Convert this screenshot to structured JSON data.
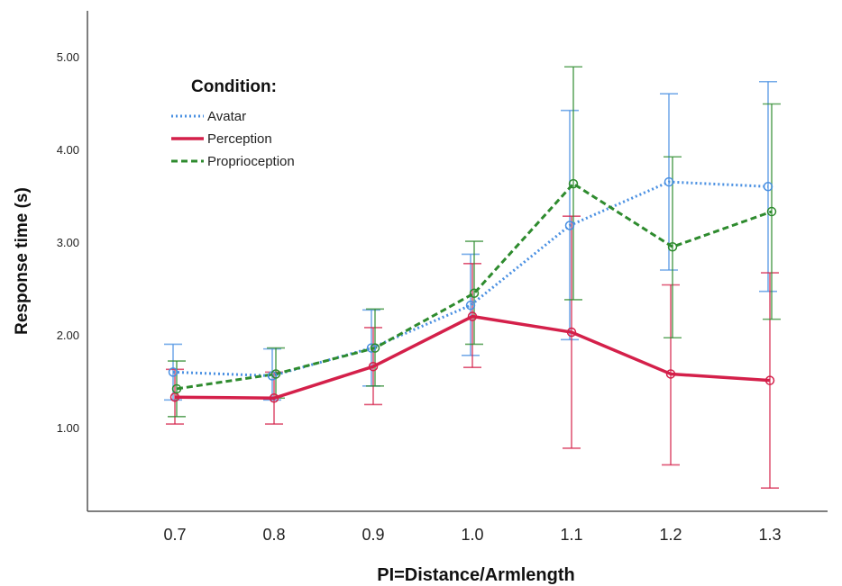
{
  "chart_data": {
    "type": "line",
    "xlabel": "PI=Distance/Armlength",
    "ylabel": "Response time (s)",
    "categories": [
      "0.7",
      "0.8",
      "0.9",
      "1.0",
      "1.1",
      "1.2",
      "1.3"
    ],
    "y_ticks": [
      "1.00",
      "2.00",
      "3.00",
      "4.00",
      "5.00"
    ],
    "ylim": [
      0.1,
      5.3
    ],
    "grid": false,
    "legend": {
      "title": "Condition:",
      "placement": "top-left"
    },
    "series": [
      {
        "name": "Avatar",
        "color": "#4a90e2",
        "line_style": "dotted",
        "values": [
          1.6,
          1.56,
          1.86,
          2.32,
          3.18,
          3.65,
          3.6
        ],
        "err_low": [
          1.3,
          1.3,
          1.45,
          1.78,
          1.95,
          2.7,
          2.47
        ],
        "err_high": [
          1.9,
          1.85,
          2.27,
          2.87,
          4.42,
          4.6,
          4.73
        ]
      },
      {
        "name": "Perception",
        "color": "#d4204a",
        "line_style": "solid",
        "values": [
          1.33,
          1.32,
          1.66,
          2.2,
          2.03,
          1.58,
          1.51
        ],
        "err_low": [
          1.04,
          1.04,
          1.25,
          1.65,
          0.78,
          0.6,
          0.35
        ],
        "err_high": [
          1.63,
          1.6,
          2.08,
          2.77,
          3.28,
          2.54,
          2.67
        ]
      },
      {
        "name": "Proprioception",
        "color": "#2e8b2e",
        "line_style": "dashed",
        "values": [
          1.42,
          1.58,
          1.86,
          2.45,
          3.63,
          2.95,
          3.33
        ],
        "err_low": [
          1.12,
          1.32,
          1.45,
          1.9,
          2.38,
          1.97,
          2.17
        ],
        "err_high": [
          1.72,
          1.86,
          2.28,
          3.01,
          4.89,
          3.92,
          4.49
        ]
      }
    ]
  }
}
